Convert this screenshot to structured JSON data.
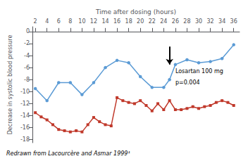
{
  "chart_data": {
    "type": "line",
    "xlabel": "Time after dosing (hours)",
    "ylabel": "Decrease in systolic blood pressure",
    "footnote": "Redrawn from Lacourcère and Asmar 1999¹",
    "series": [
      {
        "color": "#5b9bd5",
        "marker": "circle",
        "x": [
          2,
          4,
          6,
          8,
          10,
          12,
          14,
          16,
          18,
          20,
          22,
          24,
          25,
          26,
          28,
          30,
          32,
          34,
          36
        ],
        "values": [
          -9.5,
          -11.5,
          -8.5,
          -8.5,
          -10.5,
          -8.5,
          -6.0,
          -4.8,
          -5.2,
          -7.5,
          -9.3,
          -9.3,
          -8.0,
          -5.5,
          -4.7,
          -5.2,
          -5.0,
          -4.5,
          -2.2
        ]
      },
      {
        "color": "#c0392b",
        "marker": "square",
        "x": [
          2,
          3,
          4,
          5,
          6,
          7,
          8,
          9,
          10,
          11,
          12,
          13,
          14,
          15,
          16,
          17,
          18,
          19,
          20,
          21,
          22,
          23,
          24,
          25,
          26,
          27,
          28,
          29,
          30,
          31,
          32,
          33,
          34,
          35,
          36
        ],
        "values": [
          -13.5,
          -14.2,
          -14.7,
          -15.5,
          -16.3,
          -16.5,
          -16.7,
          -16.5,
          -16.7,
          -15.5,
          -14.3,
          -15.0,
          -15.5,
          -15.7,
          -11.0,
          -11.5,
          -11.8,
          -12.0,
          -11.5,
          -12.3,
          -13.2,
          -12.0,
          -13.0,
          -11.5,
          -13.0,
          -13.0,
          -12.8,
          -12.5,
          -12.8,
          -12.5,
          -12.3,
          -11.8,
          -11.5,
          -11.8,
          -12.3
        ]
      }
    ],
    "annotations": [
      {
        "type": "arrow",
        "x": 25,
        "y_start": -2.5,
        "y_end": -5.5
      },
      {
        "type": "text",
        "text": "Losartan 100 mg",
        "x": 26.0,
        "y": -6.2
      },
      {
        "type": "text",
        "text": "p=0.004",
        "x": 26.0,
        "y": -8.0
      }
    ],
    "xlim": [
      1.5,
      37
    ],
    "ylim": [
      -18.5,
      0.8
    ],
    "xticks": [
      2,
      4,
      6,
      8,
      10,
      12,
      14,
      16,
      18,
      20,
      22,
      24,
      26,
      28,
      30,
      32,
      34,
      36
    ],
    "yticks": [
      0,
      -2,
      -4,
      -6,
      -8,
      -10,
      -12,
      -14,
      -16,
      -18
    ],
    "grid": false
  }
}
